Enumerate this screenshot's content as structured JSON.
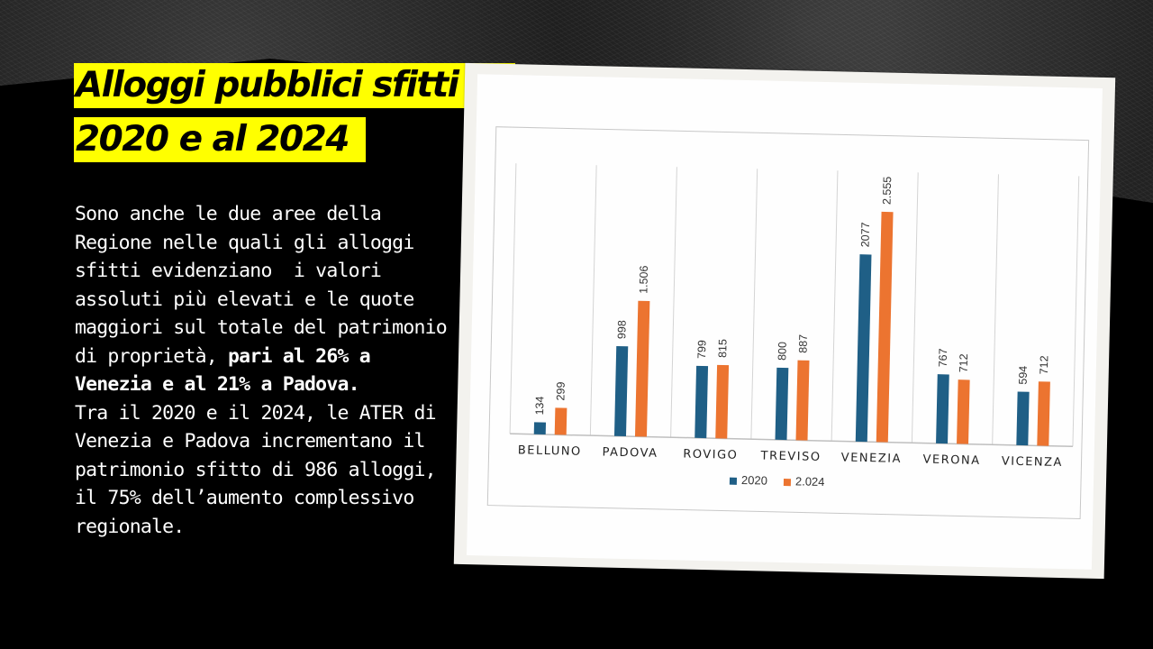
{
  "slide": {
    "title_line1": "Alloggi pubblici sfitti al",
    "title_line2": "2020 e al 2024",
    "paragraph_1": "Sono anche le due aree della Regione nelle quali gli alloggi sfitti evidenziano  i valori assoluti più elevati e le quote maggiori sul totale del patrimonio di proprietà, ",
    "paragraph_1_bold": "pari al 26% a Venezia e al 21% a Padova.",
    "paragraph_2": "Tra il 2020 e il 2024, le ATER di Venezia e Padova incrementano il patrimonio sfitto di 986 alloggi, il 75% dell’aumento complessivo regionale."
  },
  "colors": {
    "background": "#000000",
    "title_highlight": "#ffff00",
    "series_2020": "#1f5f86",
    "series_2024": "#ec7430"
  },
  "chart_data": {
    "type": "bar",
    "categories": [
      "BELLUNO",
      "PADOVA",
      "ROVIGO",
      "TREVISO",
      "VENEZIA",
      "VERONA",
      "VICENZA"
    ],
    "series": [
      {
        "name": "2020",
        "values": [
          134,
          998,
          799,
          800,
          2077,
          767,
          594
        ],
        "labels": [
          "134",
          "998",
          "799",
          "800",
          "2077",
          "767",
          "594"
        ]
      },
      {
        "name": "2.024",
        "values": [
          299,
          1506,
          815,
          887,
          2555,
          712,
          712
        ],
        "labels": [
          "299",
          "1.506",
          "815",
          "887",
          "2.555",
          "712",
          "712"
        ]
      }
    ],
    "ylim": [
      0,
      3000
    ],
    "grid": "vertical separators",
    "legend": "bottom"
  }
}
